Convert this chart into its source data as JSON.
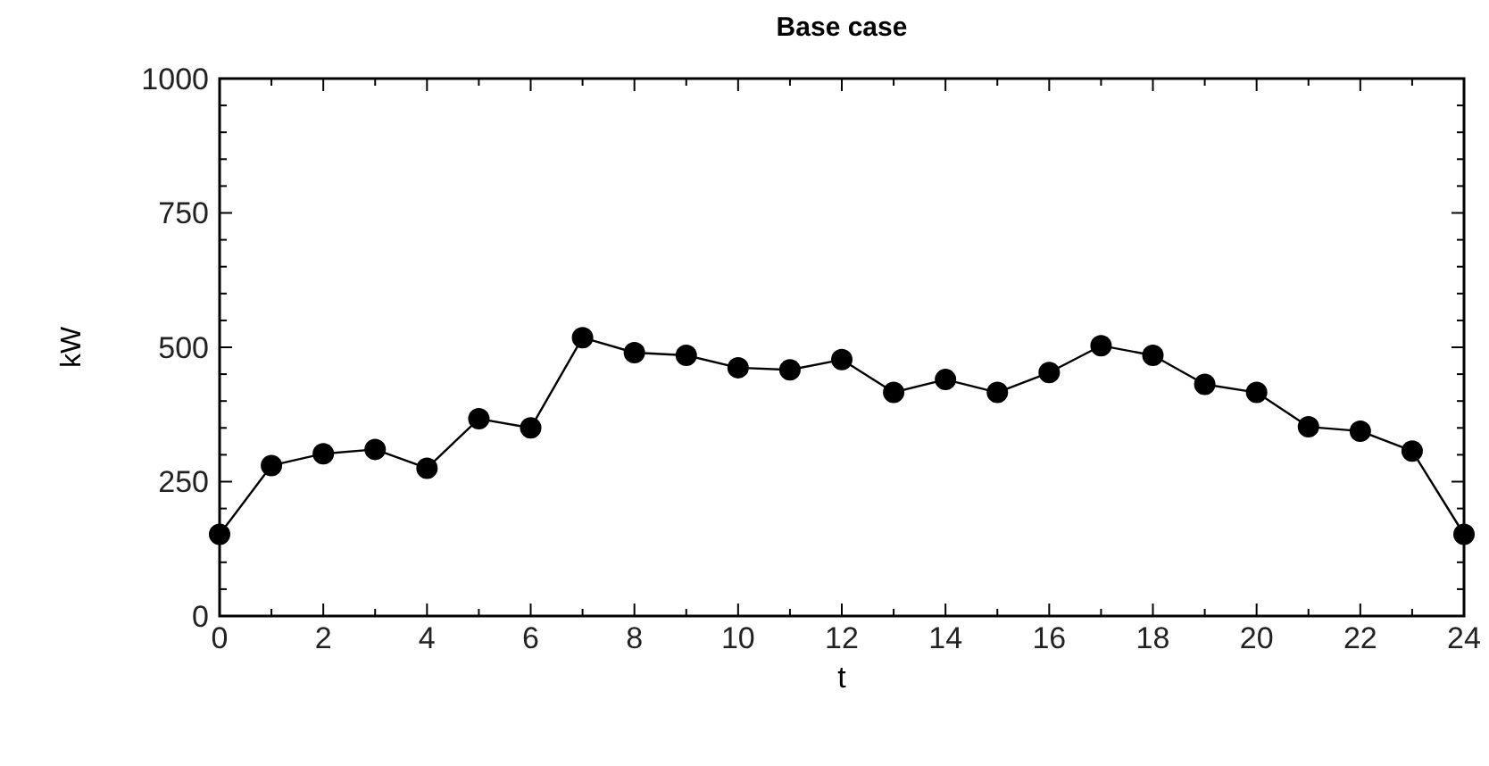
{
  "chart_data": {
    "type": "line",
    "title": "Base case",
    "xlabel": "t",
    "ylabel": "kW",
    "x": [
      0,
      1,
      2,
      3,
      4,
      5,
      6,
      7,
      8,
      9,
      10,
      11,
      12,
      13,
      14,
      15,
      16,
      17,
      18,
      19,
      20,
      21,
      22,
      23,
      24
    ],
    "series": [
      {
        "color": "#000000",
        "values": [
          152,
          280,
          302,
          310,
          275,
          367,
          350,
          518,
          490,
          485,
          462,
          458,
          477,
          416,
          440,
          416,
          453,
          503,
          485,
          431,
          416,
          352,
          344,
          307,
          152
        ]
      }
    ],
    "xlim": [
      0,
      24
    ],
    "xticks": [
      0,
      {
        "value": 1,
        "label": null
      },
      2,
      {
        "value": 3,
        "label": null
      },
      4,
      {
        "value": 5,
        "label": null
      },
      6,
      {
        "value": 7,
        "label": null
      },
      8,
      {
        "value": 9,
        "label": null
      },
      10,
      {
        "value": 11,
        "label": null
      },
      12,
      {
        "value": 13,
        "label": null
      },
      14,
      {
        "value": 15,
        "label": null
      },
      16,
      {
        "value": 17,
        "label": null
      },
      18,
      {
        "value": 19,
        "label": null
      },
      20,
      {
        "value": 21,
        "label": null
      },
      22,
      {
        "value": 23,
        "label": null
      },
      24
    ],
    "ylim": [
      0,
      1000
    ],
    "yticks": [
      0,
      {
        "value": 50,
        "label": null
      },
      {
        "value": 100,
        "label": null
      },
      {
        "value": 150,
        "label": null
      },
      {
        "value": 200,
        "label": null
      },
      250,
      {
        "value": 300,
        "label": null
      },
      {
        "value": 350,
        "label": null
      },
      {
        "value": 400,
        "label": null
      },
      {
        "value": 450,
        "label": null
      },
      500,
      {
        "value": 550,
        "label": null
      },
      {
        "value": 600,
        "label": null
      },
      {
        "value": 650,
        "label": null
      },
      {
        "value": 700,
        "label": null
      },
      750,
      {
        "value": 800,
        "label": null
      },
      {
        "value": 850,
        "label": null
      },
      {
        "value": 900,
        "label": null
      },
      {
        "value": 950,
        "label": null
      },
      1000
    ],
    "marker": "circle",
    "line_style": "solid"
  }
}
